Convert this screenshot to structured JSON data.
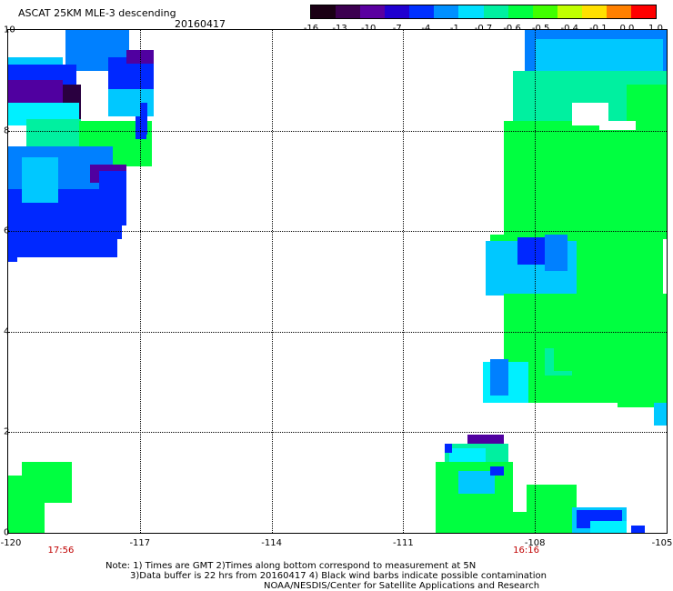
{
  "title": "ASCAT 25KM MLE-3 descending",
  "date": "20160417",
  "colorbar": {
    "labels": [
      "-16",
      "-13",
      "-10",
      "-7",
      "-4",
      "-1",
      "-0.7",
      "-0.6",
      "-0.5",
      "-0.4",
      "-0.1",
      "0.0",
      "1.0"
    ],
    "colors": [
      "#1a0014",
      "#3c0050",
      "#5a00a0",
      "#2000d0",
      "#0030ff",
      "#0090ff",
      "#00e0ff",
      "#00f0a0",
      "#00ff40",
      "#40ff00",
      "#c0ff00",
      "#ffe000",
      "#ff8000",
      "#ff0000"
    ]
  },
  "axes": {
    "x_ticks": [
      "-120",
      "-117",
      "-114",
      "-111",
      "-108",
      "-105"
    ],
    "y_ticks": [
      "10",
      "8",
      "6",
      "4",
      "2",
      "0"
    ],
    "x_range": [
      -120,
      -105
    ],
    "y_range": [
      0,
      10
    ]
  },
  "pass_times": [
    {
      "label": "17:56",
      "lon": -118.8
    },
    {
      "label": "16:16",
      "lon": -108.2
    }
  ],
  "legend_colors": {
    "dark_purple": "#2a0040",
    "purple": "#5000a0",
    "blue": "#0028ff",
    "mid_blue": "#0080ff",
    "light_blue": "#00c8ff",
    "cyan": "#00f0ff",
    "teal": "#00f0a0",
    "green": "#00ff40"
  },
  "notes": [
    "Note: 1) Times are GMT 2)Times along bottom correspond to measurement at 5N",
    "3)Data buffer is 22 hrs from 20160417 4) Black wind barbs indicate possible contamination",
    "NOAA/NESDIS/Center for Satellite Applications and Research"
  ]
}
